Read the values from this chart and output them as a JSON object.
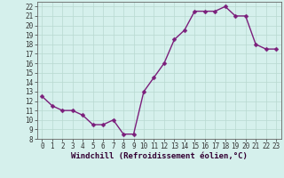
{
  "x": [
    0,
    1,
    2,
    3,
    4,
    5,
    6,
    7,
    8,
    9,
    10,
    11,
    12,
    13,
    14,
    15,
    16,
    17,
    18,
    19,
    20,
    21,
    22,
    23
  ],
  "y": [
    12.5,
    11.5,
    11.0,
    11.0,
    10.5,
    9.5,
    9.5,
    10.0,
    8.5,
    8.5,
    13.0,
    14.5,
    16.0,
    18.5,
    19.5,
    21.5,
    21.5,
    21.5,
    22.0,
    21.0,
    21.0,
    18.0,
    17.5,
    17.5
  ],
  "line_color": "#7B1E7B",
  "marker_color": "#7B1E7B",
  "bg_color": "#d5f0ec",
  "grid_color": "#b8d8d0",
  "xlabel": "Windchill (Refroidissement éolien,°C)",
  "xlim": [
    -0.5,
    23.5
  ],
  "ylim": [
    8,
    22.5
  ],
  "yticks": [
    8,
    9,
    10,
    11,
    12,
    13,
    14,
    15,
    16,
    17,
    18,
    19,
    20,
    21,
    22
  ],
  "xticks": [
    0,
    1,
    2,
    3,
    4,
    5,
    6,
    7,
    8,
    9,
    10,
    11,
    12,
    13,
    14,
    15,
    16,
    17,
    18,
    19,
    20,
    21,
    22,
    23
  ],
  "tick_fontsize": 5.5,
  "xlabel_fontsize": 6.5,
  "marker_size": 2.5,
  "line_width": 1.0,
  "spine_color": "#666666"
}
